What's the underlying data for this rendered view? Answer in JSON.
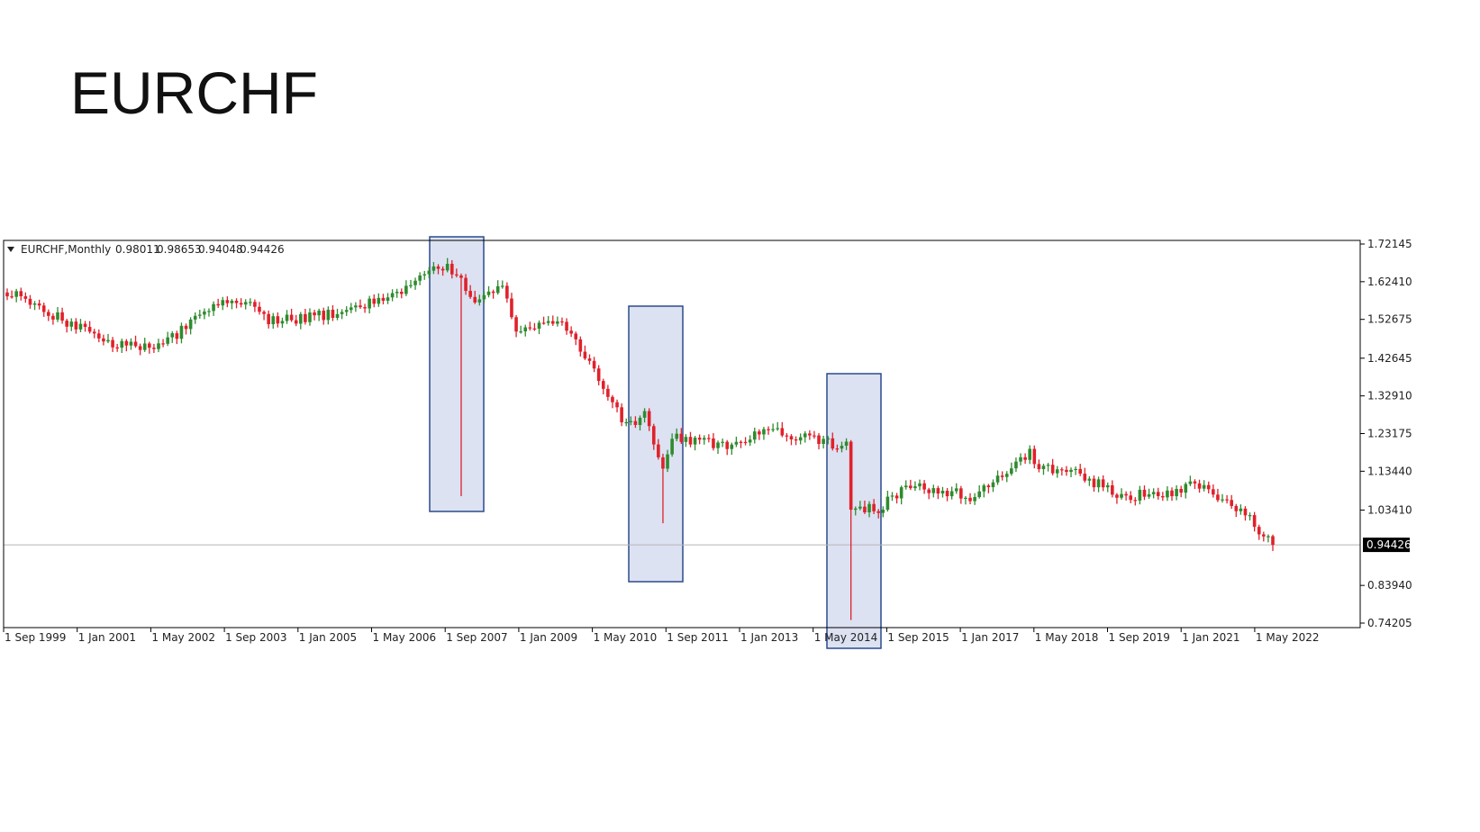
{
  "slide": {
    "title": "EURCHF"
  },
  "chart_data": {
    "type": "candlestick",
    "title": "EURCHF",
    "info": {
      "symbol": "EURCHF",
      "timeframe": "Monthly",
      "header": "EURCHF,Monthly",
      "open": "0.98011",
      "high": "0.98653",
      "low": "0.94048",
      "close": "0.94426"
    },
    "y_ticks": [
      "1.72145",
      "1.62410",
      "1.52675",
      "1.42645",
      "1.32910",
      "1.23175",
      "1.13440",
      "1.03410",
      "0.83940",
      "0.74205"
    ],
    "y_tick_values": [
      1.72145,
      1.6241,
      1.52675,
      1.42645,
      1.3291,
      1.23175,
      1.1344,
      1.0341,
      0.8394,
      0.74205
    ],
    "ylim": [
      0.74205,
      1.72145
    ],
    "x_ticks": [
      "1 Sep 1999",
      "1 Jan 2001",
      "1 May 2002",
      "1 Sep 2003",
      "1 Jan 2005",
      "1 May 2006",
      "1 Sep 2007",
      "1 Jan 2009",
      "1 May 2010",
      "1 Sep 2011",
      "1 Jan 2013",
      "1 May 2014",
      "1 Sep 2015",
      "1 Jan 2017",
      "1 May 2018",
      "1 Sep 2019",
      "1 Jan 2021",
      "1 May 2022"
    ],
    "current_price": {
      "value": 0.94426,
      "label": "0.94426"
    },
    "x_start": "1999-09",
    "highlights": [
      {
        "from": "2007-03",
        "to": "2008-07",
        "note": ""
      },
      {
        "from": "2010-09",
        "to": "2012-01",
        "note": ""
      },
      {
        "from": "2014-05",
        "to": "2015-09",
        "note": ""
      }
    ],
    "key_points": [
      {
        "date": "1999-09",
        "value": 1.6
      },
      {
        "date": "2000-10",
        "value": 1.52
      },
      {
        "date": "2001-09",
        "value": 1.46
      },
      {
        "date": "2002-07",
        "value": 1.46
      },
      {
        "date": "2003-06",
        "value": 1.56
      },
      {
        "date": "2004-01",
        "value": 1.57
      },
      {
        "date": "2004-06",
        "value": 1.52
      },
      {
        "date": "2005-08",
        "value": 1.54
      },
      {
        "date": "2006-07",
        "value": 1.58
      },
      {
        "date": "2007-09",
        "value": 1.67
      },
      {
        "date": "2008-03",
        "value": 1.58
      },
      {
        "date": "2008-09",
        "value": 1.62
      },
      {
        "date": "2008-12",
        "value": 1.49
      },
      {
        "date": "2009-06",
        "value": 1.52
      },
      {
        "date": "2009-11",
        "value": 1.51
      },
      {
        "date": "2010-06",
        "value": 1.38
      },
      {
        "date": "2010-12",
        "value": 1.25
      },
      {
        "date": "2011-04",
        "value": 1.28
      },
      {
        "date": "2011-08",
        "value": 1.14
      },
      {
        "date": "2011-10",
        "value": 1.22
      },
      {
        "date": "2012-09",
        "value": 1.2
      },
      {
        "date": "2013-06",
        "value": 1.24
      },
      {
        "date": "2014-12",
        "value": 1.2
      },
      {
        "date": "2015-01",
        "value": 1.04
      },
      {
        "date": "2015-07",
        "value": 1.04
      },
      {
        "date": "2016-01",
        "value": 1.09
      },
      {
        "date": "2016-07",
        "value": 1.09
      },
      {
        "date": "2017-03",
        "value": 1.07
      },
      {
        "date": "2018-04",
        "value": 1.18
      },
      {
        "date": "2018-06",
        "value": 1.15
      },
      {
        "date": "2019-02",
        "value": 1.13
      },
      {
        "date": "2019-12",
        "value": 1.07
      },
      {
        "date": "2020-12",
        "value": 1.08
      },
      {
        "date": "2021-03",
        "value": 1.11
      },
      {
        "date": "2021-12",
        "value": 1.04
      },
      {
        "date": "2022-03",
        "value": 1.02
      },
      {
        "date": "2022-09",
        "value": 0.944
      }
    ],
    "shocks": [
      {
        "date": "2007-12",
        "low": 1.07
      },
      {
        "date": "2011-08",
        "low": 1.0
      },
      {
        "date": "2015-01",
        "low": 0.75
      }
    ]
  },
  "colors": {
    "bull": "#2e8b2e",
    "bear": "#e0212b",
    "highlight_fill": "#d6ddf0",
    "highlight_stroke": "#2c4a8c",
    "axis": "#000000",
    "price_line": "#b5b5b5",
    "price_label_bg": "#000000",
    "price_label_fg": "#ffffff"
  }
}
